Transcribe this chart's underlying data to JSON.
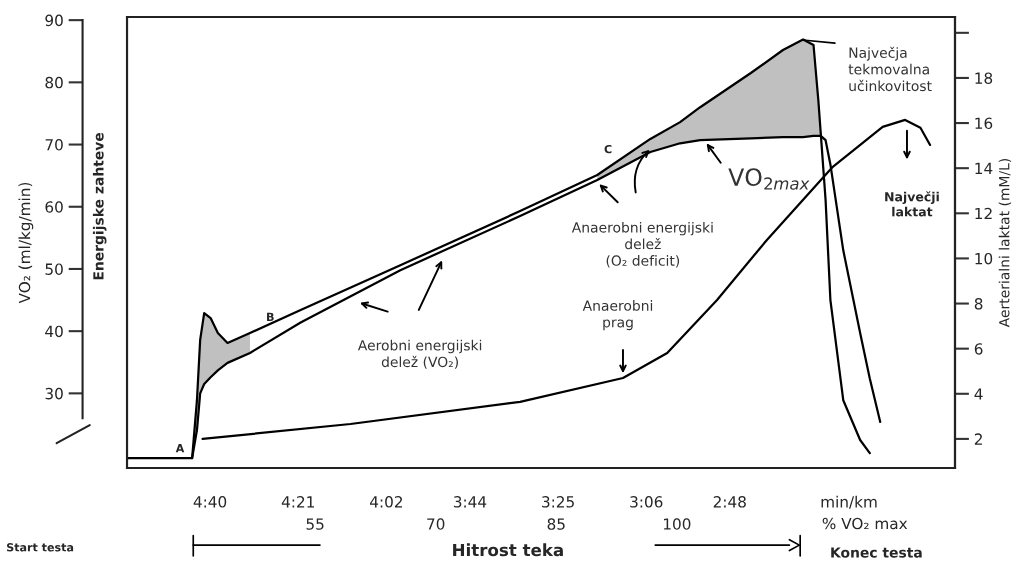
{
  "chart_data": {
    "type": "line",
    "ylabel": "VO₂ (ml/kg/min)",
    "y2label": "Aerterialni laktat (mM/L)",
    "xlabel": "% VO₂ max",
    "x2label": "min/km",
    "xlim": [
      31.6,
      134.6
    ],
    "xticks": [
      55,
      70,
      85,
      100
    ],
    "x2lim": [
      4.965,
      1.991
    ],
    "x2ticks": [
      {
        "value": 4.6667,
        "label": "4:40"
      },
      {
        "value": 4.35,
        "label": "4:21"
      },
      {
        "value": 4.0333,
        "label": "4:02"
      },
      {
        "value": 3.7333,
        "label": "3:44"
      },
      {
        "value": 3.4167,
        "label": "3:25"
      },
      {
        "value": 3.1,
        "label": "3:06"
      },
      {
        "value": 2.8,
        "label": "2:48"
      }
    ],
    "ylim": [
      18,
      90.5
    ],
    "yticks": [
      30,
      40,
      50,
      60,
      70,
      80,
      90
    ],
    "y2lim": [
      0.71,
      20.7
    ],
    "y2ticks": [
      2,
      4,
      6,
      8,
      10,
      12,
      14,
      16,
      18,
      {
        "value": 20,
        "label": null
      }
    ],
    "series": [
      {
        "color": "#000000",
        "x": [
          39.7,
          40.3,
          40.7,
          41.2,
          42.0,
          42.9,
          44.1,
          46.9,
          53.2,
          65.6,
          80.5,
          90.1,
          96.7,
          100.4,
          102.9,
          109.2,
          113.2,
          115.7,
          117.0,
          117.6,
          117.9,
          118.5,
          119.1,
          120.7,
          122.8,
          124.0
        ],
        "values": [
          19.6,
          28.9,
          38.6,
          42.9,
          42.1,
          39.7,
          38.1,
          39.7,
          43.4,
          50.6,
          59.3,
          65.1,
          70.9,
          73.6,
          76.0,
          81.5,
          85.2,
          86.9,
          86.0,
          77.1,
          71.8,
          61.1,
          45.0,
          28.9,
          22.5,
          20.4
        ],
        "lower": [
          19.6,
          24.1,
          30.0,
          31.5,
          32.6,
          33.7,
          34.9,
          36.5,
          null,
          null,
          null,
          64.3,
          68.8,
          70.2,
          70.7,
          71.0,
          71.2,
          71.2,
          71.4,
          71.4,
          71.4,
          null,
          null,
          null,
          null,
          null
        ],
        "upper": [
          19.6,
          28.9,
          38.6,
          42.9,
          42.1,
          39.7,
          38.1,
          39.7,
          null,
          null,
          null,
          65.1,
          70.9,
          73.6,
          76.0,
          81.5,
          85.2,
          86.9,
          86.0,
          77.1,
          71.8,
          null,
          null,
          null,
          null,
          null
        ]
      },
      {
        "color": "#000000",
        "x": [
          31.6,
          39.5,
          39.7,
          40.3,
          40.7,
          41.2,
          42.0,
          42.9,
          44.1,
          46.9,
          53.2,
          65.6,
          80.5,
          90.1,
          96.7,
          100.4,
          102.9,
          109.2,
          113.2,
          115.7,
          117.0,
          117.6,
          117.9,
          118.5,
          119.1,
          120.7,
          122.8,
          124.0,
          125.3
        ],
        "values": [
          19.6,
          19.6,
          19.6,
          24.1,
          30.0,
          31.5,
          32.6,
          33.7,
          34.9,
          36.5,
          41.4,
          49.8,
          58.5,
          64.3,
          68.8,
          70.2,
          70.7,
          71.0,
          71.2,
          71.2,
          71.4,
          71.4,
          71.4,
          70.7,
          66.8,
          53.0,
          39.7,
          32.4,
          25.4
        ]
      },
      {
        "color": "#000000",
        "axis": "y2",
        "x": [
          41.0,
          59.4,
          80.5,
          93.3,
          98.8,
          105.0,
          111.2,
          119.4,
          125.6,
          128.4,
          130.3,
          131.5
        ],
        "values": [
          2.0,
          2.66,
          3.64,
          4.7,
          5.81,
          8.16,
          10.82,
          14.06,
          15.83,
          16.14,
          15.79,
          15.03
        ]
      }
    ],
    "annotations": [
      "A",
      "B",
      "C",
      "Aerobni energijski\ndelež (VO₂)",
      "Anaerobni energijski\ndelež\n(O₂ deficit)",
      "VO$_{2max}$",
      "Največja\ntekmovalna\nučinkovitost",
      "Anaerobni\nprag",
      "Največji\nlaktat",
      "Energijske zahteve",
      "Start testa",
      "Hitrost teka",
      "Konec testa"
    ]
  }
}
